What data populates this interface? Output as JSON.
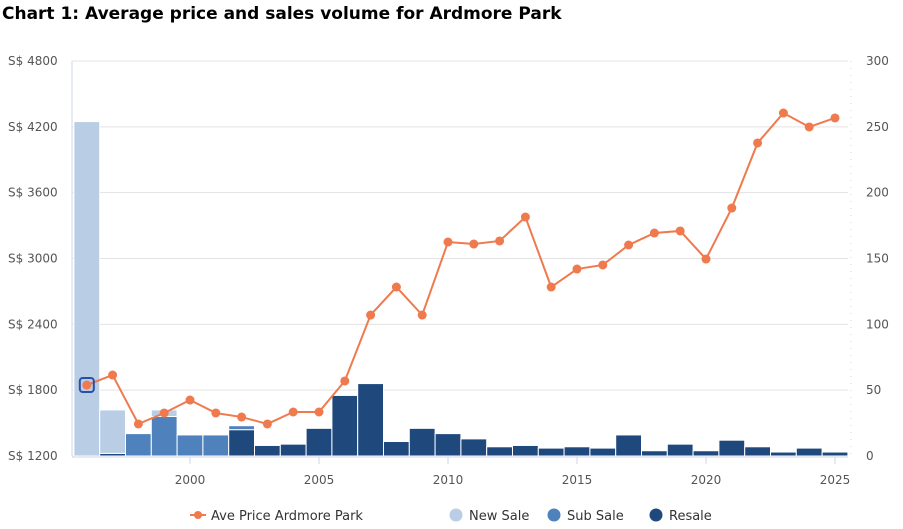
{
  "title": "Chart 1: Average price and sales volume for Ardmore Park",
  "chart_data": {
    "type": "bar+line",
    "title": "Chart 1: Average price and sales volume for Ardmore Park",
    "x": [
      1996,
      1997,
      1998,
      1999,
      2000,
      2001,
      2002,
      2003,
      2004,
      2005,
      2006,
      2007,
      2008,
      2009,
      2010,
      2011,
      2012,
      2013,
      2014,
      2015,
      2016,
      2017,
      2018,
      2019,
      2020,
      2021,
      2022,
      2023,
      2024,
      2025
    ],
    "xticks": [
      "2000",
      "2005",
      "2010",
      "2015",
      "2020",
      "2025"
    ],
    "y_left": {
      "ylim": [
        1200,
        4800
      ],
      "ticks": [
        "S$ 1200",
        "S$ 1800",
        "S$ 2400",
        "S$ 3000",
        "S$ 3600",
        "S$ 4200",
        "S$ 4800"
      ]
    },
    "y_right": {
      "ylim": [
        0,
        300
      ],
      "ticks": [
        "0",
        "50",
        "100",
        "150",
        "200",
        "250",
        "300"
      ]
    },
    "grid": true,
    "legend_position": "bottom",
    "series": [
      {
        "name": "Ave Price Ardmore Park",
        "type": "line",
        "axis": "left",
        "color": "#ef7a4e",
        "values": [
          1847,
          1938,
          1492,
          1592,
          1710,
          1592,
          1555,
          1492,
          1601,
          1601,
          1884,
          2485,
          2740,
          2485,
          3150,
          3132,
          3160,
          3378,
          2740,
          2904,
          2941,
          3123,
          3232,
          3251,
          2995,
          3460,
          4053,
          4326,
          4199,
          4281
        ]
      },
      {
        "name": "New Sale",
        "type": "bar",
        "stack": true,
        "axis": "right",
        "color": "#b9cde5",
        "values": [
          254,
          33,
          0,
          5,
          0,
          0,
          0,
          0,
          0,
          0,
          0,
          0,
          0,
          0,
          0,
          0,
          0,
          0,
          0,
          0,
          0,
          0,
          0,
          0,
          0,
          0,
          0,
          0,
          0,
          0
        ]
      },
      {
        "name": "Sub Sale",
        "type": "bar",
        "stack": true,
        "axis": "right",
        "color": "#4f81bd",
        "values": [
          0,
          0,
          17,
          30,
          16,
          16,
          3,
          0,
          0,
          0,
          0,
          0,
          0,
          0,
          0,
          0,
          0,
          0,
          0,
          0,
          0,
          0,
          0,
          0,
          0,
          0,
          0,
          0,
          0,
          0
        ]
      },
      {
        "name": "Resale",
        "type": "bar",
        "stack": true,
        "axis": "right",
        "color": "#1f497d",
        "values": [
          0,
          2,
          0,
          0,
          0,
          0,
          20,
          8,
          9,
          21,
          46,
          55,
          11,
          21,
          17,
          13,
          7,
          8,
          6,
          7,
          6,
          16,
          4,
          9,
          4,
          12,
          7,
          3,
          6,
          3
        ]
      }
    ]
  }
}
